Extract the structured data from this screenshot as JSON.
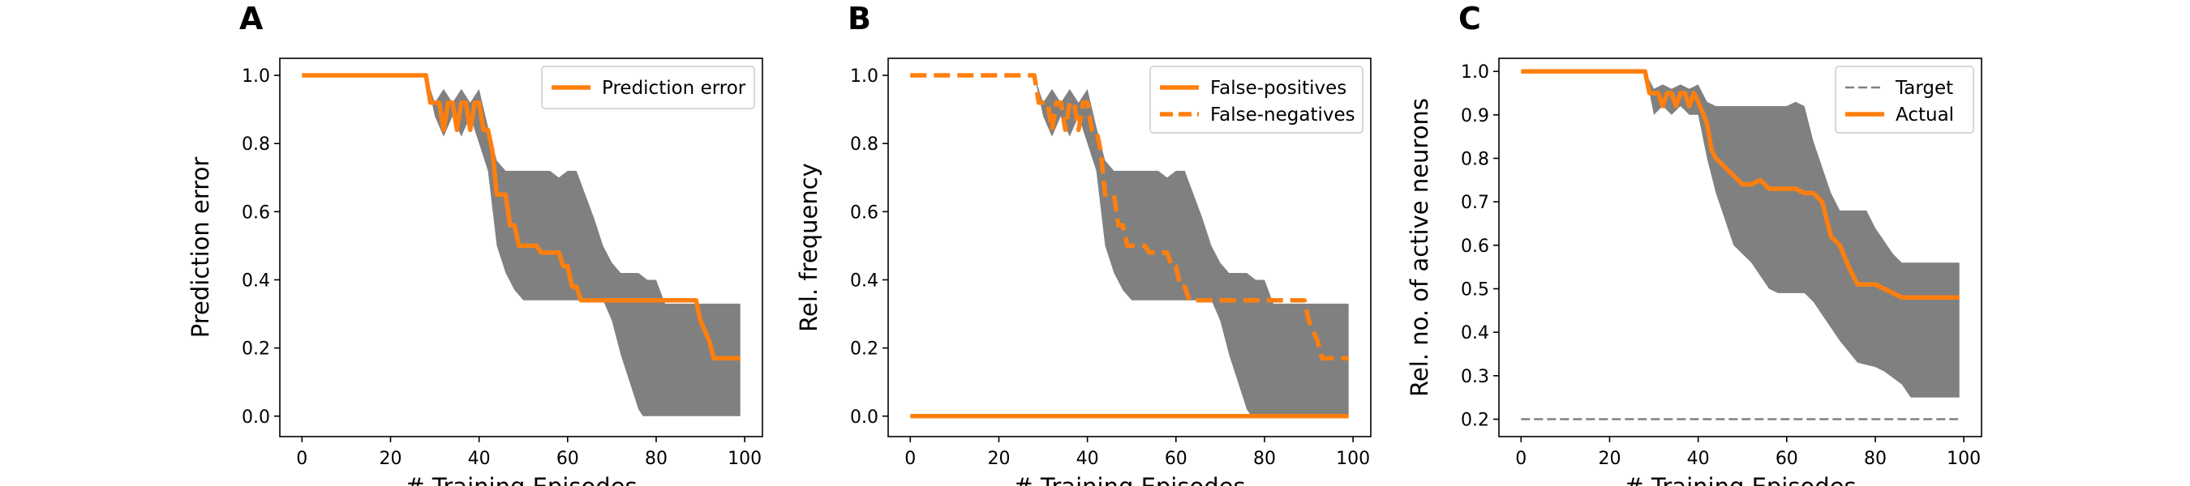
{
  "colors": {
    "series": "#ff7f0e",
    "band": "#808080",
    "target": "#808080",
    "axis": "#000000"
  },
  "chart_data": [
    {
      "panel": "A",
      "type": "line",
      "xlabel": "# Training Episodes",
      "ylabel": "Prediction error",
      "xlim": [
        -5,
        104
      ],
      "ylim": [
        -0.06,
        1.05
      ],
      "xticks": [
        "0",
        "20",
        "40",
        "60",
        "80",
        "100"
      ],
      "xtick_values": [
        0,
        20,
        40,
        60,
        80,
        100
      ],
      "yticks": [
        "0.0",
        "0.2",
        "0.4",
        "0.6",
        "0.8",
        "1.0"
      ],
      "ytick_values": [
        0.0,
        0.2,
        0.4,
        0.6,
        0.8,
        1.0
      ],
      "legend_position": "top-right",
      "band": {
        "upper": [
          [
            0,
            1
          ],
          [
            28,
            1
          ],
          [
            30,
            0.92
          ],
          [
            32,
            0.96
          ],
          [
            34,
            0.92
          ],
          [
            36,
            0.96
          ],
          [
            38,
            0.92
          ],
          [
            40,
            0.96
          ],
          [
            42,
            0.85
          ],
          [
            44,
            0.75
          ],
          [
            46,
            0.72
          ],
          [
            56,
            0.72
          ],
          [
            58,
            0.7
          ],
          [
            60,
            0.72
          ],
          [
            62,
            0.72
          ],
          [
            64,
            0.65
          ],
          [
            66,
            0.58
          ],
          [
            68,
            0.5
          ],
          [
            70,
            0.45
          ],
          [
            72,
            0.42
          ],
          [
            76,
            0.42
          ],
          [
            78,
            0.4
          ],
          [
            80,
            0.4
          ],
          [
            82,
            0.33
          ],
          [
            99,
            0.33
          ]
        ],
        "lower": [
          [
            0,
            1
          ],
          [
            28,
            1
          ],
          [
            30,
            0.88
          ],
          [
            32,
            0.82
          ],
          [
            34,
            0.88
          ],
          [
            36,
            0.82
          ],
          [
            38,
            0.88
          ],
          [
            40,
            0.8
          ],
          [
            42,
            0.72
          ],
          [
            44,
            0.5
          ],
          [
            46,
            0.42
          ],
          [
            48,
            0.37
          ],
          [
            50,
            0.34
          ],
          [
            68,
            0.34
          ],
          [
            70,
            0.28
          ],
          [
            72,
            0.18
          ],
          [
            74,
            0.1
          ],
          [
            76,
            0.02
          ],
          [
            77,
            0
          ],
          [
            99,
            0
          ]
        ]
      },
      "series": [
        {
          "name": "Prediction error",
          "style": "solid",
          "points": [
            [
              0,
              1
            ],
            [
              28,
              1
            ],
            [
              29,
              0.92
            ],
            [
              31,
              0.92
            ],
            [
              32,
              0.84
            ],
            [
              33,
              0.92
            ],
            [
              34,
              0.92
            ],
            [
              35,
              0.84
            ],
            [
              36,
              0.92
            ],
            [
              37,
              0.92
            ],
            [
              38,
              0.84
            ],
            [
              39,
              0.92
            ],
            [
              40,
              0.92
            ],
            [
              41,
              0.84
            ],
            [
              42,
              0.84
            ],
            [
              43,
              0.78
            ],
            [
              44,
              0.65
            ],
            [
              46,
              0.65
            ],
            [
              47,
              0.56
            ],
            [
              48,
              0.56
            ],
            [
              49,
              0.5
            ],
            [
              53,
              0.5
            ],
            [
              54,
              0.48
            ],
            [
              58,
              0.48
            ],
            [
              59,
              0.44
            ],
            [
              60,
              0.44
            ],
            [
              61,
              0.38
            ],
            [
              62,
              0.38
            ],
            [
              63,
              0.34
            ],
            [
              89,
              0.34
            ],
            [
              90,
              0.28
            ],
            [
              92,
              0.22
            ],
            [
              93,
              0.17
            ],
            [
              99,
              0.17
            ]
          ]
        }
      ]
    },
    {
      "panel": "B",
      "type": "line",
      "xlabel": "# Training Episodes",
      "ylabel": "Rel. frequency",
      "xlim": [
        -5,
        104
      ],
      "ylim": [
        -0.06,
        1.05
      ],
      "xticks": [
        "0",
        "20",
        "40",
        "60",
        "80",
        "100"
      ],
      "xtick_values": [
        0,
        20,
        40,
        60,
        80,
        100
      ],
      "yticks": [
        "0.0",
        "0.2",
        "0.4",
        "0.6",
        "0.8",
        "1.0"
      ],
      "ytick_values": [
        0.0,
        0.2,
        0.4,
        0.6,
        0.8,
        1.0
      ],
      "legend_position": "top-right",
      "band": {
        "upper": [
          [
            0,
            1
          ],
          [
            28,
            1
          ],
          [
            30,
            0.92
          ],
          [
            32,
            0.96
          ],
          [
            34,
            0.92
          ],
          [
            36,
            0.96
          ],
          [
            38,
            0.92
          ],
          [
            40,
            0.96
          ],
          [
            42,
            0.85
          ],
          [
            44,
            0.75
          ],
          [
            46,
            0.72
          ],
          [
            56,
            0.72
          ],
          [
            58,
            0.7
          ],
          [
            60,
            0.72
          ],
          [
            62,
            0.72
          ],
          [
            64,
            0.65
          ],
          [
            66,
            0.58
          ],
          [
            68,
            0.5
          ],
          [
            70,
            0.45
          ],
          [
            72,
            0.42
          ],
          [
            76,
            0.42
          ],
          [
            78,
            0.4
          ],
          [
            80,
            0.4
          ],
          [
            82,
            0.33
          ],
          [
            99,
            0.33
          ]
        ],
        "lower": [
          [
            0,
            1
          ],
          [
            28,
            1
          ],
          [
            30,
            0.88
          ],
          [
            32,
            0.82
          ],
          [
            34,
            0.88
          ],
          [
            36,
            0.82
          ],
          [
            38,
            0.88
          ],
          [
            40,
            0.8
          ],
          [
            42,
            0.72
          ],
          [
            44,
            0.5
          ],
          [
            46,
            0.42
          ],
          [
            48,
            0.37
          ],
          [
            50,
            0.34
          ],
          [
            68,
            0.34
          ],
          [
            70,
            0.28
          ],
          [
            72,
            0.18
          ],
          [
            74,
            0.1
          ],
          [
            76,
            0.02
          ],
          [
            77,
            0
          ],
          [
            99,
            0
          ]
        ]
      },
      "series": [
        {
          "name": "False-positives",
          "style": "solid",
          "points": [
            [
              0,
              0
            ],
            [
              99,
              0
            ]
          ]
        },
        {
          "name": "False-negatives",
          "style": "dashed",
          "points": [
            [
              0,
              1
            ],
            [
              28,
              1
            ],
            [
              29,
              0.92
            ],
            [
              31,
              0.92
            ],
            [
              32,
              0.84
            ],
            [
              33,
              0.92
            ],
            [
              34,
              0.92
            ],
            [
              35,
              0.84
            ],
            [
              36,
              0.92
            ],
            [
              37,
              0.92
            ],
            [
              38,
              0.84
            ],
            [
              39,
              0.92
            ],
            [
              40,
              0.92
            ],
            [
              41,
              0.84
            ],
            [
              42,
              0.84
            ],
            [
              43,
              0.78
            ],
            [
              44,
              0.65
            ],
            [
              46,
              0.65
            ],
            [
              47,
              0.56
            ],
            [
              48,
              0.56
            ],
            [
              49,
              0.5
            ],
            [
              53,
              0.5
            ],
            [
              54,
              0.48
            ],
            [
              58,
              0.48
            ],
            [
              59,
              0.44
            ],
            [
              60,
              0.44
            ],
            [
              61,
              0.38
            ],
            [
              62,
              0.38
            ],
            [
              63,
              0.34
            ],
            [
              89,
              0.34
            ],
            [
              90,
              0.28
            ],
            [
              92,
              0.22
            ],
            [
              93,
              0.17
            ],
            [
              99,
              0.17
            ]
          ]
        }
      ]
    },
    {
      "panel": "C",
      "type": "line",
      "xlabel": "# Training Episodes",
      "ylabel": "Rel. no. of active neurons",
      "xlim": [
        -5,
        104
      ],
      "ylim": [
        0.16,
        1.03
      ],
      "xticks": [
        "0",
        "20",
        "40",
        "60",
        "80",
        "100"
      ],
      "xtick_values": [
        0,
        20,
        40,
        60,
        80,
        100
      ],
      "yticks": [
        "0.2",
        "0.3",
        "0.4",
        "0.5",
        "0.6",
        "0.7",
        "0.8",
        "0.9",
        "1.0"
      ],
      "ytick_values": [
        0.2,
        0.3,
        0.4,
        0.5,
        0.6,
        0.7,
        0.8,
        0.9,
        1.0
      ],
      "legend_position": "top-right",
      "band": {
        "upper": [
          [
            0,
            1
          ],
          [
            28,
            1
          ],
          [
            30,
            0.96
          ],
          [
            32,
            0.97
          ],
          [
            34,
            0.96
          ],
          [
            36,
            0.97
          ],
          [
            38,
            0.96
          ],
          [
            40,
            0.97
          ],
          [
            42,
            0.93
          ],
          [
            44,
            0.92
          ],
          [
            60,
            0.92
          ],
          [
            62,
            0.93
          ],
          [
            64,
            0.92
          ],
          [
            66,
            0.84
          ],
          [
            68,
            0.78
          ],
          [
            70,
            0.72
          ],
          [
            72,
            0.68
          ],
          [
            78,
            0.68
          ],
          [
            80,
            0.64
          ],
          [
            84,
            0.58
          ],
          [
            86,
            0.56
          ],
          [
            99,
            0.56
          ]
        ],
        "lower": [
          [
            0,
            1
          ],
          [
            28,
            1
          ],
          [
            30,
            0.9
          ],
          [
            32,
            0.92
          ],
          [
            34,
            0.9
          ],
          [
            36,
            0.92
          ],
          [
            38,
            0.9
          ],
          [
            40,
            0.9
          ],
          [
            42,
            0.8
          ],
          [
            44,
            0.72
          ],
          [
            46,
            0.66
          ],
          [
            48,
            0.6
          ],
          [
            52,
            0.56
          ],
          [
            56,
            0.5
          ],
          [
            58,
            0.49
          ],
          [
            64,
            0.49
          ],
          [
            66,
            0.47
          ],
          [
            68,
            0.44
          ],
          [
            72,
            0.38
          ],
          [
            76,
            0.33
          ],
          [
            80,
            0.32
          ],
          [
            82,
            0.31
          ],
          [
            86,
            0.28
          ],
          [
            88,
            0.25
          ],
          [
            99,
            0.25
          ]
        ]
      },
      "series": [
        {
          "name": "Target",
          "style": "dashed-thin",
          "points": [
            [
              0,
              0.2
            ],
            [
              99,
              0.2
            ]
          ]
        },
        {
          "name": "Actual",
          "style": "solid",
          "points": [
            [
              0,
              1
            ],
            [
              28,
              1
            ],
            [
              29,
              0.95
            ],
            [
              31,
              0.95
            ],
            [
              32,
              0.92
            ],
            [
              33,
              0.95
            ],
            [
              34,
              0.95
            ],
            [
              35,
              0.92
            ],
            [
              36,
              0.95
            ],
            [
              37,
              0.95
            ],
            [
              38,
              0.92
            ],
            [
              39,
              0.95
            ],
            [
              40,
              0.93
            ],
            [
              42,
              0.88
            ],
            [
              43,
              0.82
            ],
            [
              44,
              0.8
            ],
            [
              46,
              0.78
            ],
            [
              48,
              0.76
            ],
            [
              50,
              0.74
            ],
            [
              52,
              0.74
            ],
            [
              54,
              0.75
            ],
            [
              56,
              0.73
            ],
            [
              62,
              0.73
            ],
            [
              64,
              0.72
            ],
            [
              66,
              0.72
            ],
            [
              68,
              0.7
            ],
            [
              70,
              0.62
            ],
            [
              72,
              0.6
            ],
            [
              74,
              0.55
            ],
            [
              76,
              0.51
            ],
            [
              80,
              0.51
            ],
            [
              82,
              0.5
            ],
            [
              84,
              0.49
            ],
            [
              86,
              0.48
            ],
            [
              99,
              0.48
            ]
          ]
        }
      ]
    }
  ]
}
